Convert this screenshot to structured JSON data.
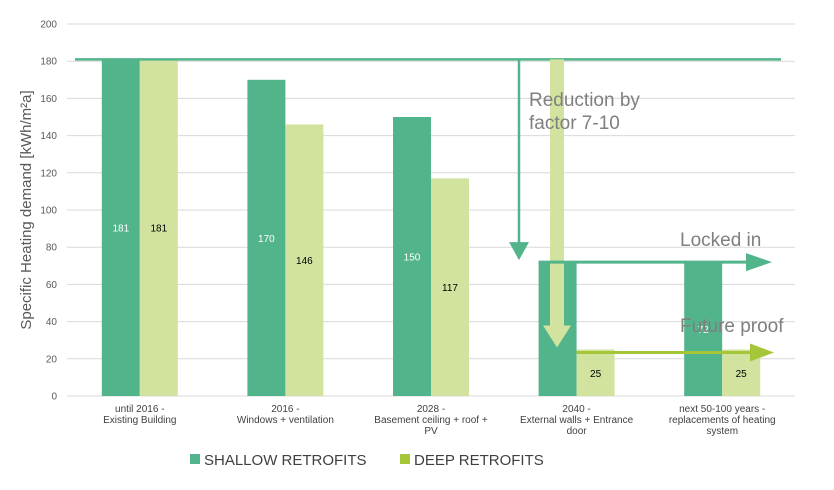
{
  "chart_data": {
    "type": "bar",
    "title": "",
    "xlabel": "",
    "ylabel": "Specific Heating demand [kWh/m²a]",
    "ylim": [
      0,
      200
    ],
    "yticks": [
      0,
      20,
      40,
      60,
      80,
      100,
      120,
      140,
      160,
      180,
      200
    ],
    "grid": true,
    "legend": "bottom",
    "categories": [
      [
        "until 2016 -",
        "Existing Building"
      ],
      [
        "2016 -",
        "Windows + ventilation"
      ],
      [
        "2028 -",
        "Basement ceiling + roof +",
        "PV"
      ],
      [
        "2040 -",
        "External walls + Entrance",
        "door"
      ],
      [
        "next 50-100 years -",
        "replacements of heating",
        "system"
      ]
    ],
    "series": [
      {
        "name": "SHALLOW RETROFITS",
        "color": "#52b48a",
        "label_color": "#ffffff",
        "values": [
          181,
          170,
          150,
          72,
          72
        ]
      },
      {
        "name": "DEEP RETROFITS",
        "color": "#d2e29f",
        "label_color": "#000000",
        "values": [
          181,
          146,
          117,
          25,
          25
        ]
      }
    ],
    "annotations": {
      "reduction": "Reduction by factor 7-10",
      "reduction_lines": [
        "Reduction by",
        "factor 7-10"
      ],
      "locked": "Locked in",
      "future": "Future proof",
      "reference_line_value": 181,
      "shallow_arrow_color": "#52b48a",
      "deep_arrow_color": "#a6c63a",
      "deep_downarrow_color": "#d2e29f"
    }
  }
}
